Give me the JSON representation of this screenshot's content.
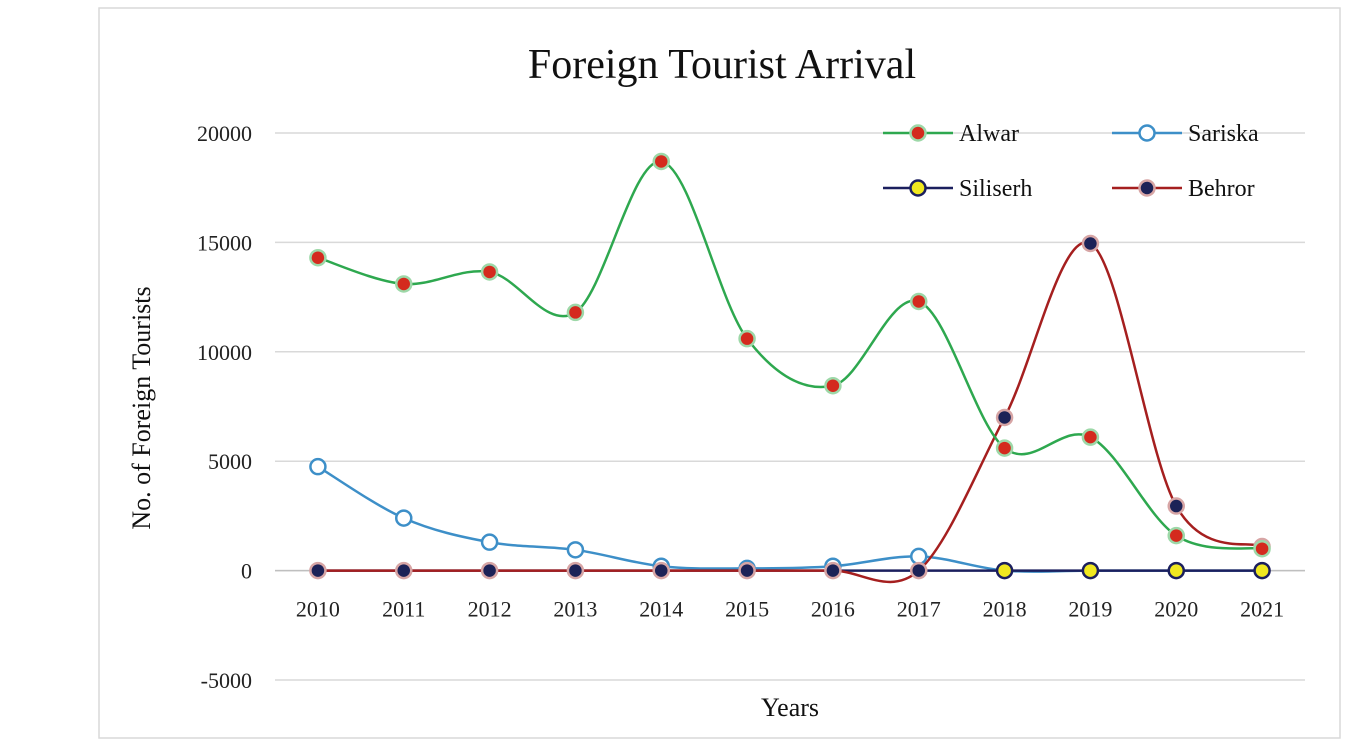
{
  "chart_data": {
    "type": "line",
    "title": "Foreign Tourist Arrival",
    "xlabel": "Years",
    "ylabel": "No. of Foreign Tourists",
    "categories": [
      "2010",
      "2011",
      "2012",
      "2013",
      "2014",
      "2015",
      "2016",
      "2017",
      "2018",
      "2019",
      "2020",
      "2021"
    ],
    "ylim": [
      -5000,
      20000
    ],
    "yticks": [
      20000,
      15000,
      10000,
      5000,
      0,
      -5000
    ],
    "grid": true,
    "legend_position": "top-right",
    "smooth": true,
    "series": [
      {
        "name": "Alwar",
        "line_color": "#2ea84f",
        "marker_fill": "#d42a1e",
        "marker_stroke": "#9dd8a8",
        "values": [
          14300,
          13100,
          13650,
          11800,
          18700,
          10600,
          8450,
          12300,
          5600,
          6100,
          1600,
          1000
        ]
      },
      {
        "name": "Sariska",
        "line_color": "#3d8fc8",
        "marker_fill": "#ffffff",
        "marker_stroke": "#3d8fc8",
        "values": [
          4750,
          2400,
          1300,
          950,
          200,
          100,
          200,
          650,
          0,
          0,
          0,
          0
        ]
      },
      {
        "name": "Siliserh",
        "line_color": "#1b1f5e",
        "marker_fill": "#f0e820",
        "marker_stroke": "#1b1f5e",
        "values": [
          0,
          0,
          0,
          0,
          0,
          0,
          0,
          0,
          0,
          0,
          0,
          0
        ]
      },
      {
        "name": "Behror",
        "line_color": "#a51f1f",
        "marker_fill": "#1c2257",
        "marker_stroke": "#d7a5a5",
        "values": [
          0,
          0,
          0,
          0,
          0,
          0,
          0,
          0,
          7000,
          14950,
          2950,
          1100
        ]
      }
    ]
  }
}
